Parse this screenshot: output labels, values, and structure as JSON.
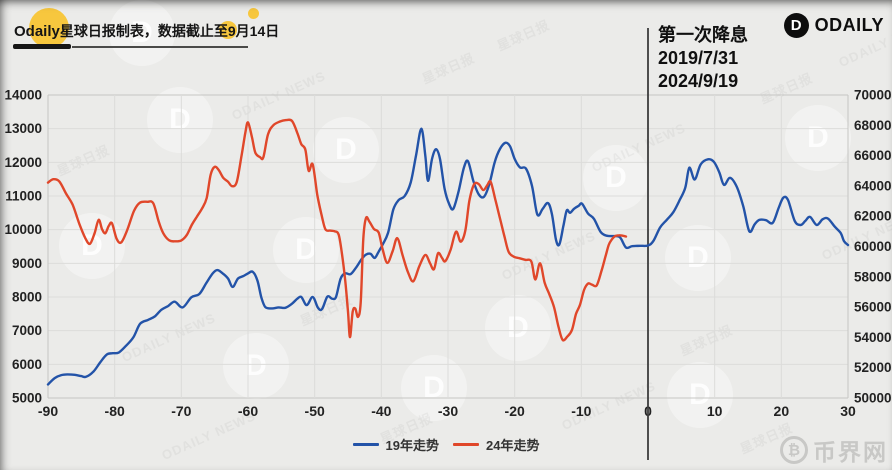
{
  "header": {
    "brand": "Odaily",
    "note_text": "星球日报制表，数据截止至9月",
    "note_day": "14",
    "note_suffix": "日"
  },
  "logo": {
    "text": "ODAILY",
    "icon_letter": "D"
  },
  "annotation": {
    "title": "第一次降息",
    "date_2019": "2019/7/31",
    "date_2024": "2024/9/19"
  },
  "legend": {
    "items": [
      {
        "label": "19年走势"
      },
      {
        "label": "24年走势"
      }
    ]
  },
  "footer_watermark": {
    "text": "币界网",
    "icon": "₿"
  },
  "ghost_watermark": {
    "text_cn": "星球日报",
    "text_en": "ODAILY NEWS",
    "icon_letter": "D"
  },
  "colors": {
    "background": "#ebebe9",
    "gridline": "#dcdcda",
    "plot_border": "#c6c6c4",
    "axis_text": "#222222",
    "marker_line": "#3d3d3d",
    "accent_yellow": "#f7c73e",
    "series_19": "#2353a8",
    "series_24": "#e0472a"
  },
  "chart_data": {
    "type": "line",
    "title": "",
    "x_axis": {
      "range": [
        -90,
        30
      ],
      "ticks": [
        -90,
        -80,
        -70,
        -60,
        -50,
        -40,
        -30,
        -20,
        -10,
        0,
        10,
        20,
        30
      ]
    },
    "left_y_axis": {
      "range": [
        5000,
        14000
      ],
      "ticks": [
        5000,
        6000,
        7000,
        8000,
        9000,
        10000,
        11000,
        12000,
        13000,
        14000
      ]
    },
    "right_y_axis": {
      "range": [
        50000,
        70000
      ],
      "ticks": [
        50000,
        52000,
        54000,
        56000,
        58000,
        60000,
        62000,
        64000,
        66000,
        68000,
        70000
      ]
    },
    "marker_x": 0,
    "grid": true,
    "legend_position": "bottom",
    "series": [
      {
        "name": "19年走势",
        "axis": "left",
        "color": "#2353a8",
        "points": [
          [
            -90,
            5400
          ],
          [
            -89,
            5590
          ],
          [
            -88,
            5680
          ],
          [
            -87,
            5700
          ],
          [
            -86,
            5690
          ],
          [
            -85,
            5650
          ],
          [
            -84.3,
            5630
          ],
          [
            -83.2,
            5780
          ],
          [
            -82.2,
            6050
          ],
          [
            -81.2,
            6290
          ],
          [
            -80.3,
            6330
          ],
          [
            -79.4,
            6350
          ],
          [
            -78.3,
            6550
          ],
          [
            -77.2,
            6800
          ],
          [
            -76.2,
            7200
          ],
          [
            -75,
            7320
          ],
          [
            -74,
            7420
          ],
          [
            -73,
            7620
          ],
          [
            -72,
            7730
          ],
          [
            -71,
            7860
          ],
          [
            -69.8,
            7690
          ],
          [
            -68.5,
            7990
          ],
          [
            -67.3,
            8090
          ],
          [
            -66.3,
            8400
          ],
          [
            -65.3,
            8700
          ],
          [
            -64.6,
            8800
          ],
          [
            -63.8,
            8700
          ],
          [
            -63,
            8550
          ],
          [
            -62.3,
            8300
          ],
          [
            -61.5,
            8550
          ],
          [
            -60.7,
            8620
          ],
          [
            -60,
            8700
          ],
          [
            -59.3,
            8750
          ],
          [
            -58.6,
            8500
          ],
          [
            -58,
            7990
          ],
          [
            -57.4,
            7700
          ],
          [
            -56.4,
            7660
          ],
          [
            -55.4,
            7690
          ],
          [
            -54.4,
            7680
          ],
          [
            -53.4,
            7800
          ],
          [
            -52.6,
            7950
          ],
          [
            -52,
            8000
          ],
          [
            -51.2,
            7760
          ],
          [
            -50.3,
            8000
          ],
          [
            -49.5,
            7680
          ],
          [
            -48.9,
            7640
          ],
          [
            -48.1,
            8010
          ],
          [
            -47.4,
            7950
          ],
          [
            -46.8,
            8000
          ],
          [
            -46.1,
            8550
          ],
          [
            -45.4,
            8700
          ],
          [
            -44.6,
            8680
          ],
          [
            -43.8,
            8870
          ],
          [
            -43,
            9110
          ],
          [
            -42.3,
            9260
          ],
          [
            -41.6,
            9280
          ],
          [
            -41,
            9160
          ],
          [
            -40.4,
            9350
          ],
          [
            -39.8,
            9560
          ],
          [
            -39,
            9900
          ],
          [
            -38.2,
            10600
          ],
          [
            -37.4,
            10880
          ],
          [
            -36.5,
            11000
          ],
          [
            -35.6,
            11400
          ],
          [
            -34.8,
            12200
          ],
          [
            -34,
            13000
          ],
          [
            -33.4,
            12200
          ],
          [
            -33,
            11450
          ],
          [
            -32.4,
            12100
          ],
          [
            -31.8,
            12390
          ],
          [
            -31.2,
            12100
          ],
          [
            -30.5,
            11200
          ],
          [
            -29.8,
            10750
          ],
          [
            -29.2,
            10620
          ],
          [
            -28.4,
            11150
          ],
          [
            -27.6,
            11850
          ],
          [
            -27,
            12030
          ],
          [
            -26.2,
            11450
          ],
          [
            -25.4,
            11050
          ],
          [
            -24.6,
            10980
          ],
          [
            -23.8,
            11350
          ],
          [
            -23,
            12000
          ],
          [
            -22.2,
            12400
          ],
          [
            -21.4,
            12580
          ],
          [
            -20.7,
            12480
          ],
          [
            -20,
            12100
          ],
          [
            -19.2,
            11850
          ],
          [
            -18.3,
            11810
          ],
          [
            -17.4,
            11300
          ],
          [
            -16.6,
            10450
          ],
          [
            -15.8,
            10620
          ],
          [
            -15,
            10790
          ],
          [
            -14.4,
            10450
          ],
          [
            -13.8,
            9700
          ],
          [
            -13.3,
            9560
          ],
          [
            -12.7,
            10100
          ],
          [
            -12.2,
            10570
          ],
          [
            -11.7,
            10500
          ],
          [
            -11.1,
            10620
          ],
          [
            -10.4,
            10710
          ],
          [
            -9.9,
            10770
          ],
          [
            -9,
            10480
          ],
          [
            -8.1,
            10320
          ],
          [
            -7.1,
            9930
          ],
          [
            -6.2,
            9820
          ],
          [
            -5.2,
            9810
          ],
          [
            -4.2,
            9770
          ],
          [
            -3.3,
            9470
          ],
          [
            -2.4,
            9510
          ],
          [
            -1.2,
            9520
          ],
          [
            0,
            9530
          ],
          [
            0.8,
            9660
          ],
          [
            1.8,
            10060
          ],
          [
            2.8,
            10290
          ],
          [
            3.8,
            10520
          ],
          [
            4.8,
            10900
          ],
          [
            5.6,
            11250
          ],
          [
            6.2,
            11840
          ],
          [
            7,
            11490
          ],
          [
            7.9,
            11940
          ],
          [
            9,
            12090
          ],
          [
            9.9,
            12010
          ],
          [
            10.7,
            11700
          ],
          [
            11.4,
            11330
          ],
          [
            12.3,
            11540
          ],
          [
            13.3,
            11280
          ],
          [
            14.3,
            10690
          ],
          [
            15.2,
            9950
          ],
          [
            16,
            10160
          ],
          [
            16.7,
            10290
          ],
          [
            17.7,
            10280
          ],
          [
            18.7,
            10200
          ],
          [
            19.6,
            10650
          ],
          [
            20.3,
            10950
          ],
          [
            21,
            10880
          ],
          [
            22,
            10260
          ],
          [
            22.9,
            10140
          ],
          [
            23.6,
            10260
          ],
          [
            24.3,
            10380
          ],
          [
            25.3,
            10140
          ],
          [
            26.2,
            10310
          ],
          [
            27,
            10330
          ],
          [
            28,
            10090
          ],
          [
            28.9,
            9900
          ],
          [
            29.4,
            9660
          ],
          [
            30,
            9545
          ]
        ]
      },
      {
        "name": "24年走势",
        "axis": "right",
        "color": "#e0472a",
        "points": [
          [
            -90,
            64220
          ],
          [
            -89.2,
            64440
          ],
          [
            -88.3,
            64300
          ],
          [
            -87.3,
            63500
          ],
          [
            -86.3,
            62750
          ],
          [
            -85.3,
            61500
          ],
          [
            -84.4,
            60550
          ],
          [
            -83.7,
            60180
          ],
          [
            -83,
            60900
          ],
          [
            -82.4,
            61760
          ],
          [
            -81.9,
            61150
          ],
          [
            -81.4,
            60870
          ],
          [
            -80.9,
            61350
          ],
          [
            -80.4,
            61530
          ],
          [
            -79.7,
            60500
          ],
          [
            -79,
            60280
          ],
          [
            -78.1,
            61100
          ],
          [
            -77.1,
            62350
          ],
          [
            -76.2,
            62900
          ],
          [
            -75.1,
            62950
          ],
          [
            -74.2,
            62850
          ],
          [
            -73.4,
            61650
          ],
          [
            -72.7,
            60870
          ],
          [
            -71.8,
            60400
          ],
          [
            -70.9,
            60340
          ],
          [
            -70,
            60400
          ],
          [
            -69.2,
            60750
          ],
          [
            -68.4,
            61450
          ],
          [
            -67.7,
            61950
          ],
          [
            -66.9,
            62500
          ],
          [
            -66.2,
            63200
          ],
          [
            -65.6,
            64750
          ],
          [
            -65,
            65260
          ],
          [
            -64.4,
            65050
          ],
          [
            -63.7,
            64530
          ],
          [
            -63,
            64280
          ],
          [
            -62.4,
            63980
          ],
          [
            -61.7,
            64250
          ],
          [
            -61,
            65900
          ],
          [
            -60.4,
            67500
          ],
          [
            -60,
            68190
          ],
          [
            -59.4,
            67200
          ],
          [
            -58.9,
            66200
          ],
          [
            -58.2,
            65900
          ],
          [
            -57.7,
            65880
          ],
          [
            -57,
            67400
          ],
          [
            -56.2,
            68000
          ],
          [
            -55.2,
            68250
          ],
          [
            -54.3,
            68340
          ],
          [
            -53.4,
            68290
          ],
          [
            -52.6,
            67500
          ],
          [
            -52,
            66750
          ],
          [
            -51.4,
            66400
          ],
          [
            -50.9,
            65000
          ],
          [
            -50.3,
            65420
          ],
          [
            -49.6,
            63400
          ],
          [
            -49,
            62150
          ],
          [
            -48.4,
            61150
          ],
          [
            -47.7,
            61050
          ],
          [
            -47,
            61000
          ],
          [
            -46.4,
            60780
          ],
          [
            -45.9,
            59500
          ],
          [
            -45.4,
            57700
          ],
          [
            -45,
            55700
          ],
          [
            -44.7,
            54020
          ],
          [
            -44.3,
            55700
          ],
          [
            -43.9,
            55900
          ],
          [
            -43.5,
            55350
          ],
          [
            -43.1,
            56300
          ],
          [
            -42.7,
            60500
          ],
          [
            -42.3,
            61880
          ],
          [
            -41.8,
            61650
          ],
          [
            -41.1,
            61150
          ],
          [
            -40.4,
            60920
          ],
          [
            -39.8,
            59800
          ],
          [
            -39.1,
            58920
          ],
          [
            -38.3,
            59700
          ],
          [
            -37.6,
            60550
          ],
          [
            -36.8,
            59400
          ],
          [
            -36,
            58300
          ],
          [
            -35.2,
            57700
          ],
          [
            -34.3,
            58700
          ],
          [
            -33.4,
            59440
          ],
          [
            -32.7,
            58900
          ],
          [
            -32.1,
            58500
          ],
          [
            -31.5,
            59550
          ],
          [
            -30.9,
            59250
          ],
          [
            -30.4,
            59030
          ],
          [
            -29.6,
            59800
          ],
          [
            -28.8,
            60980
          ],
          [
            -28.1,
            60320
          ],
          [
            -27.4,
            61050
          ],
          [
            -26.8,
            63000
          ],
          [
            -26.1,
            64090
          ],
          [
            -25.4,
            64120
          ],
          [
            -24.7,
            63720
          ],
          [
            -24.1,
            64050
          ],
          [
            -23.6,
            64270
          ],
          [
            -22.9,
            63100
          ],
          [
            -22.2,
            61850
          ],
          [
            -21.5,
            60600
          ],
          [
            -20.9,
            59640
          ],
          [
            -20.1,
            59320
          ],
          [
            -19.3,
            59230
          ],
          [
            -18.4,
            59120
          ],
          [
            -17.5,
            59010
          ],
          [
            -16.9,
            57820
          ],
          [
            -16.2,
            58890
          ],
          [
            -15.5,
            57600
          ],
          [
            -14.8,
            56850
          ],
          [
            -14.1,
            56000
          ],
          [
            -13.4,
            54650
          ],
          [
            -12.8,
            53830
          ],
          [
            -12.1,
            54050
          ],
          [
            -11.4,
            54500
          ],
          [
            -10.8,
            55550
          ],
          [
            -10.2,
            56150
          ],
          [
            -9.6,
            57120
          ],
          [
            -9,
            57550
          ],
          [
            -8.4,
            57480
          ],
          [
            -7.7,
            57430
          ],
          [
            -7,
            58350
          ],
          [
            -6.4,
            59300
          ],
          [
            -5.9,
            60100
          ],
          [
            -5.4,
            60480
          ],
          [
            -4.9,
            60690
          ],
          [
            -4.3,
            60740
          ],
          [
            -3.8,
            60710
          ],
          [
            -3.3,
            60660
          ]
        ]
      }
    ]
  }
}
